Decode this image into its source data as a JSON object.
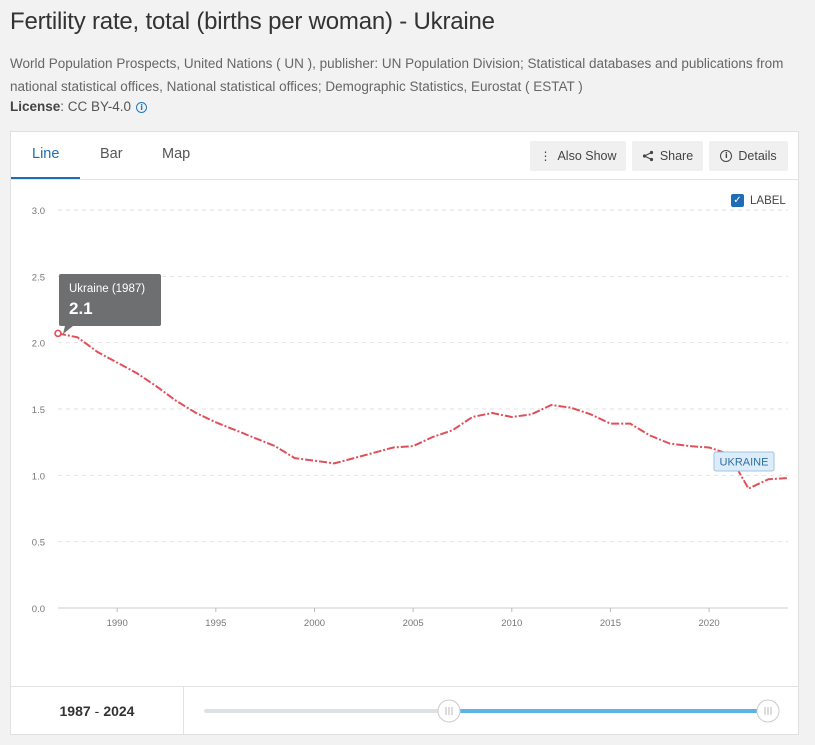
{
  "page": {
    "title": "Fertility rate, total (births per woman) - Ukraine",
    "source": "World Population Prospects, United Nations ( UN ), publisher: UN Population Division; Statistical databases and publications from national statistical offices, National statistical offices; Demographic Statistics, Eurostat ( ESTAT )",
    "license_label": "License",
    "license_value": ": CC BY-4.0",
    "info_icon": "info-circle-icon"
  },
  "tabs": [
    {
      "label": "Line",
      "active": true
    },
    {
      "label": "Bar",
      "active": false
    },
    {
      "label": "Map",
      "active": false
    }
  ],
  "toolbar": {
    "also_show": "Also Show",
    "share": "Share",
    "details": "Details"
  },
  "label_toggle": {
    "label": "LABEL",
    "checked": true
  },
  "tooltip": {
    "title": "Ukraine (1987)",
    "value": "2.1"
  },
  "series_label": "UKRAINE",
  "range": {
    "start": "1987",
    "sep": "-",
    "end": "2024"
  },
  "colors": {
    "accent": "#1f6eb5",
    "line": "#e0505a",
    "slider": "#5ab4e8"
  },
  "chart_data": {
    "type": "line",
    "title": "",
    "xlabel": "",
    "ylabel": "",
    "ylim": [
      0,
      3
    ],
    "xlim": [
      1987,
      2024
    ],
    "yticks": [
      "0.0",
      "0.5",
      "1.0",
      "1.5",
      "2.0",
      "2.5",
      "3.0"
    ],
    "xticks": [
      "1990",
      "1995",
      "2000",
      "2005",
      "2010",
      "2015",
      "2020"
    ],
    "grid": true,
    "series": [
      {
        "name": "Ukraine",
        "x": [
          1987,
          1988,
          1989,
          1990,
          1991,
          1992,
          1993,
          1994,
          1995,
          1996,
          1997,
          1998,
          1999,
          2000,
          2001,
          2002,
          2003,
          2004,
          2005,
          2006,
          2007,
          2008,
          2009,
          2010,
          2011,
          2012,
          2013,
          2014,
          2015,
          2016,
          2017,
          2018,
          2019,
          2020,
          2021,
          2022,
          2023,
          2024
        ],
        "values": [
          2.07,
          2.04,
          1.93,
          1.85,
          1.77,
          1.67,
          1.56,
          1.47,
          1.4,
          1.34,
          1.28,
          1.22,
          1.13,
          1.11,
          1.09,
          1.13,
          1.17,
          1.21,
          1.22,
          1.29,
          1.34,
          1.44,
          1.47,
          1.44,
          1.46,
          1.53,
          1.51,
          1.46,
          1.39,
          1.39,
          1.3,
          1.24,
          1.22,
          1.21,
          1.16,
          0.9,
          0.97,
          0.98
        ]
      }
    ]
  }
}
